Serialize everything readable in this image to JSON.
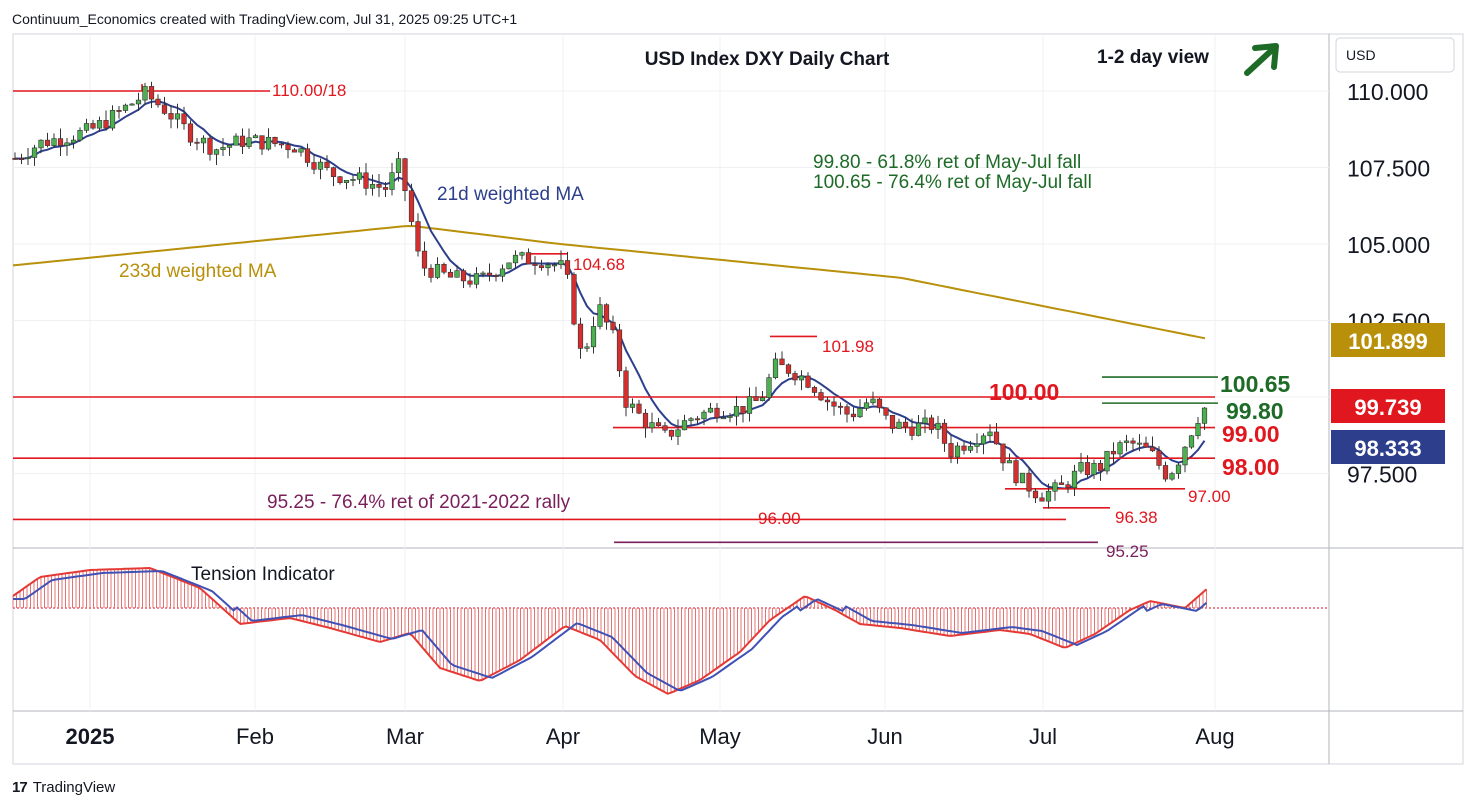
{
  "header": {
    "source": "Continuum_Economics created with TradingView.com, Jul 31, 2025 09:25 UTC+1"
  },
  "footer": {
    "brand": "TradingView"
  },
  "chart_data": {
    "type": "candlestick",
    "title": "USD Index DXY Daily Chart",
    "view_label": "1-2 day view",
    "view_direction": "up",
    "currency": "USD",
    "y_ticks": [
      "110.000",
      "107.500",
      "105.000",
      "102.500",
      "97.500"
    ],
    "y_range": [
      94.5,
      111.5
    ],
    "x_ticks": [
      "2025",
      "Feb",
      "Mar",
      "Apr",
      "May",
      "Jun",
      "Jul",
      "Aug"
    ],
    "price_badges": [
      {
        "label": "101.899",
        "value": 101.899,
        "color": "#b8900a"
      },
      {
        "label": "99.739",
        "value": 99.739,
        "color": "#e1171f"
      },
      {
        "label": "98.333",
        "value": 98.333,
        "color": "#2d3f8c"
      }
    ],
    "series": [
      {
        "name": "21d weighted MA",
        "color": "#2d3f8c"
      },
      {
        "name": "233d weighted MA",
        "color": "#b8900a"
      }
    ],
    "levels": [
      {
        "label": "110.00/18",
        "value": 110.0,
        "color": "#e1171f"
      },
      {
        "label": "104.68",
        "value": 104.68,
        "color": "#e1171f"
      },
      {
        "label": "101.98",
        "value": 101.98,
        "color": "#e1171f"
      },
      {
        "label": "100.65",
        "value": 100.65,
        "color": "#1e6b27"
      },
      {
        "label": "100.00",
        "value": 100.0,
        "color": "#e1171f"
      },
      {
        "label": "99.80",
        "value": 99.8,
        "color": "#1e6b27"
      },
      {
        "label": "99.00",
        "value": 99.0,
        "color": "#e1171f"
      },
      {
        "label": "98.00",
        "value": 98.0,
        "color": "#e1171f"
      },
      {
        "label": "97.00",
        "value": 97.0,
        "color": "#e1171f"
      },
      {
        "label": "96.38",
        "value": 96.38,
        "color": "#e1171f"
      },
      {
        "label": "96.00",
        "value": 96.0,
        "color": "#e1171f"
      },
      {
        "label": "95.25",
        "value": 95.25,
        "color": "#7a1f5c"
      }
    ],
    "annotations": [
      {
        "text": "99.80 - 61.8% ret of May-Jul fall",
        "color": "#1e6b27"
      },
      {
        "text": "100.65 - 76.4% ret of May-Jul fall",
        "color": "#1e6b27"
      },
      {
        "text": "95.25 - 76.4% ret of 2021-2022 rally",
        "color": "#7a1f5c"
      }
    ],
    "indicator": {
      "name": "Tension Indicator"
    }
  }
}
